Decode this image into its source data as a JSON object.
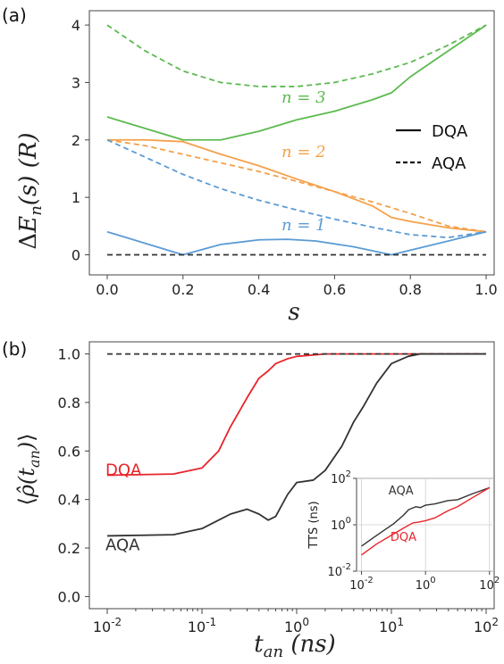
{
  "colors": {
    "blue": "#5b9bd5",
    "orange": "#f5a04a",
    "green": "#5cba4f",
    "black": "#333333",
    "red": "#e8242a",
    "axis": "#444444"
  },
  "chart_data": [
    {
      "type": "line",
      "panel_label": "(a)",
      "xlabel": "s",
      "ylabel": "ΔE_n(s)  (R)",
      "xlim": [
        0,
        1
      ],
      "ylim": [
        -0.35,
        4.25
      ],
      "xticks": [
        0.0,
        0.2,
        0.4,
        0.6,
        0.8,
        1.0
      ],
      "xtick_labels": [
        "0.0",
        "0.2",
        "0.4",
        "0.6",
        "0.8",
        "1.0"
      ],
      "yticks": [
        0,
        1,
        2,
        3,
        4
      ],
      "ytick_labels": [
        "0",
        "1",
        "2",
        "3",
        "4"
      ],
      "legend": {
        "placement": "right",
        "entries": [
          {
            "label": "DQA",
            "style": "solid"
          },
          {
            "label": "AQA",
            "style": "dashed"
          }
        ]
      },
      "annotations": [
        {
          "text": "n = 3",
          "x": 0.46,
          "y": 2.65,
          "color": "green"
        },
        {
          "text": "n = 2",
          "x": 0.46,
          "y": 1.7,
          "color": "orange"
        },
        {
          "text": "n = 1",
          "x": 0.46,
          "y": 0.43,
          "color": "blue"
        }
      ],
      "series": [
        {
          "color": "green",
          "style": "solid",
          "points": [
            [
              0,
              2.4
            ],
            [
              0.1,
              2.2
            ],
            [
              0.2,
              2.0
            ],
            [
              0.3,
              2.0
            ],
            [
              0.4,
              2.15
            ],
            [
              0.5,
              2.35
            ],
            [
              0.6,
              2.5
            ],
            [
              0.7,
              2.7
            ],
            [
              0.75,
              2.82
            ],
            [
              0.8,
              3.1
            ],
            [
              0.9,
              3.55
            ],
            [
              1.0,
              4.0
            ]
          ]
        },
        {
          "color": "green",
          "style": "dashed",
          "points": [
            [
              0,
              4.0
            ],
            [
              0.1,
              3.55
            ],
            [
              0.2,
              3.2
            ],
            [
              0.3,
              3.0
            ],
            [
              0.4,
              2.93
            ],
            [
              0.5,
              2.93
            ],
            [
              0.6,
              3.0
            ],
            [
              0.7,
              3.15
            ],
            [
              0.8,
              3.35
            ],
            [
              0.9,
              3.65
            ],
            [
              1.0,
              4.0
            ]
          ]
        },
        {
          "color": "orange",
          "style": "solid",
          "points": [
            [
              0,
              2.0
            ],
            [
              0.1,
              2.0
            ],
            [
              0.2,
              1.97
            ],
            [
              0.3,
              1.75
            ],
            [
              0.4,
              1.55
            ],
            [
              0.5,
              1.32
            ],
            [
              0.6,
              1.1
            ],
            [
              0.7,
              0.85
            ],
            [
              0.75,
              0.65
            ],
            [
              0.8,
              0.58
            ],
            [
              0.9,
              0.47
            ],
            [
              1.0,
              0.4
            ]
          ]
        },
        {
          "color": "orange",
          "style": "dashed",
          "points": [
            [
              0,
              2.0
            ],
            [
              0.1,
              1.9
            ],
            [
              0.2,
              1.75
            ],
            [
              0.3,
              1.6
            ],
            [
              0.4,
              1.45
            ],
            [
              0.5,
              1.28
            ],
            [
              0.6,
              1.1
            ],
            [
              0.7,
              0.92
            ],
            [
              0.8,
              0.72
            ],
            [
              0.9,
              0.5
            ],
            [
              1.0,
              0.4
            ]
          ]
        },
        {
          "color": "blue",
          "style": "dashed",
          "points": [
            [
              0,
              2.0
            ],
            [
              0.1,
              1.7
            ],
            [
              0.2,
              1.4
            ],
            [
              0.3,
              1.15
            ],
            [
              0.4,
              0.95
            ],
            [
              0.5,
              0.78
            ],
            [
              0.6,
              0.62
            ],
            [
              0.7,
              0.48
            ],
            [
              0.8,
              0.35
            ],
            [
              0.9,
              0.3
            ],
            [
              1.0,
              0.4
            ]
          ]
        },
        {
          "color": "blue",
          "style": "solid",
          "points": [
            [
              0,
              0.4
            ],
            [
              0.1,
              0.2
            ],
            [
              0.2,
              0.0
            ],
            [
              0.3,
              0.18
            ],
            [
              0.4,
              0.26
            ],
            [
              0.475,
              0.27
            ],
            [
              0.55,
              0.24
            ],
            [
              0.65,
              0.14
            ],
            [
              0.75,
              0.0
            ],
            [
              0.875,
              0.2
            ],
            [
              1.0,
              0.4
            ]
          ]
        },
        {
          "color": "black",
          "style": "dashed",
          "points": [
            [
              0,
              0.0
            ],
            [
              1.0,
              0.0
            ]
          ]
        }
      ]
    },
    {
      "type": "line",
      "panel_label": "(b)",
      "xlabel": "t_an  (ns)",
      "ylabel": "⟨ρ̂(t_an)⟩",
      "xscale": "log",
      "xlim": [
        0.005,
        200
      ],
      "ylim": [
        -0.05,
        1.05
      ],
      "xticks": [
        0.01,
        0.1,
        1,
        10,
        100
      ],
      "xtick_labels": [
        [
          "10",
          "-2"
        ],
        [
          "10",
          "-1"
        ],
        [
          "10",
          "0"
        ],
        [
          "10",
          "1"
        ],
        [
          "10",
          "2"
        ]
      ],
      "yticks": [
        0.0,
        0.2,
        0.4,
        0.6,
        0.8,
        1.0
      ],
      "ytick_labels": [
        "0.0",
        "0.2",
        "0.4",
        "0.6",
        "0.8",
        "1.0"
      ],
      "labels": [
        {
          "text": "DQA",
          "x": 0.006,
          "y": 0.53,
          "color": "red"
        },
        {
          "text": "AQA",
          "x": 0.006,
          "y": 0.22,
          "color": "black"
        }
      ],
      "series": [
        {
          "name": "DQA",
          "color": "red",
          "style": "solid",
          "points": [
            [
              0.01,
              0.5
            ],
            [
              0.05,
              0.505
            ],
            [
              0.1,
              0.53
            ],
            [
              0.15,
              0.6
            ],
            [
              0.2,
              0.7
            ],
            [
              0.3,
              0.82
            ],
            [
              0.4,
              0.9
            ],
            [
              0.5,
              0.93
            ],
            [
              0.6,
              0.96
            ],
            [
              0.8,
              0.98
            ],
            [
              1,
              0.99
            ],
            [
              2,
              1.0
            ],
            [
              100,
              1.0
            ]
          ]
        },
        {
          "name": "AQA",
          "color": "black",
          "style": "solid",
          "points": [
            [
              0.01,
              0.25
            ],
            [
              0.05,
              0.255
            ],
            [
              0.1,
              0.28
            ],
            [
              0.2,
              0.34
            ],
            [
              0.3,
              0.36
            ],
            [
              0.4,
              0.34
            ],
            [
              0.5,
              0.315
            ],
            [
              0.6,
              0.33
            ],
            [
              0.8,
              0.42
            ],
            [
              1.0,
              0.47
            ],
            [
              1.5,
              0.48
            ],
            [
              2,
              0.52
            ],
            [
              3,
              0.62
            ],
            [
              4,
              0.72
            ],
            [
              5,
              0.78
            ],
            [
              7,
              0.88
            ],
            [
              10,
              0.96
            ],
            [
              15,
              0.99
            ],
            [
              20,
              1.0
            ],
            [
              100,
              1.0
            ]
          ]
        },
        {
          "color": "black",
          "style": "dashed",
          "points": [
            [
              0.01,
              1.0
            ],
            [
              100,
              1.0
            ]
          ]
        }
      ],
      "inset": {
        "xscale": "log",
        "yscale": "log",
        "ylabel": "TTS (ns)",
        "xlim": [
          0.007,
          140
        ],
        "ylim": [
          0.01,
          100
        ],
        "xticks": [
          0.01,
          1,
          100
        ],
        "xtick_labels": [
          [
            "10",
            "-2"
          ],
          [
            "10",
            "0"
          ],
          [
            "10",
            "2"
          ]
        ],
        "yticks": [
          0.01,
          1,
          100
        ],
        "ytick_labels": [
          [
            "10",
            "-2"
          ],
          [
            "10",
            "0"
          ],
          [
            "10",
            "2"
          ]
        ],
        "labels": [
          {
            "text": "AQA",
            "x": 0.07,
            "y": 20,
            "color": "black"
          },
          {
            "text": "DQA",
            "x": 0.08,
            "y": 0.2,
            "color": "red"
          }
        ],
        "series": [
          {
            "name": "AQA",
            "color": "black",
            "style": "solid",
            "points": [
              [
                0.01,
                0.12
              ],
              [
                0.03,
                0.35
              ],
              [
                0.1,
                1.1
              ],
              [
                0.2,
                2.5
              ],
              [
                0.3,
                4.5
              ],
              [
                0.5,
                6
              ],
              [
                0.7,
                5.5
              ],
              [
                1,
                7
              ],
              [
                2,
                8
              ],
              [
                5,
                11
              ],
              [
                10,
                12
              ],
              [
                30,
                22
              ],
              [
                100,
                40
              ]
            ]
          },
          {
            "name": "DQA",
            "color": "red",
            "style": "solid",
            "points": [
              [
                0.01,
                0.05
              ],
              [
                0.03,
                0.15
              ],
              [
                0.1,
                0.4
              ],
              [
                0.2,
                0.7
              ],
              [
                0.4,
                1.2
              ],
              [
                0.6,
                1.3
              ],
              [
                1,
                1.5
              ],
              [
                2,
                2.0
              ],
              [
                5,
                4
              ],
              [
                10,
                6
              ],
              [
                30,
                15
              ],
              [
                100,
                40
              ]
            ]
          }
        ]
      }
    }
  ]
}
